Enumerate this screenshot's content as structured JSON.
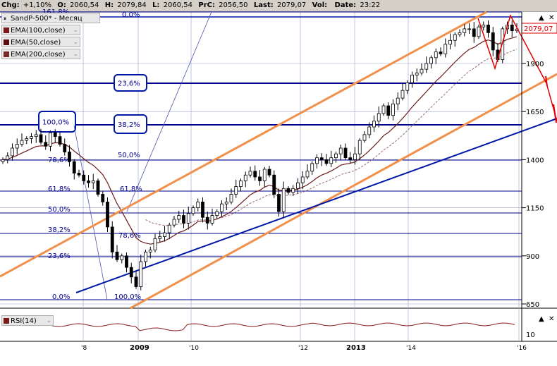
{
  "header": {
    "chg_label": "Chg:",
    "chg_value": "+1,10%",
    "o_label": "O:",
    "o_value": "2060,54",
    "h_label": "H:",
    "h_value": "2079,84",
    "l_label": "L:",
    "l_value": "2060,54",
    "prc_label": "PrC:",
    "prc_value": "2056,50",
    "last_label": "Last:",
    "last_value": "2079,07",
    "vol_label": "Vol:",
    "vol_value": "",
    "date_label": "Date:",
    "date_value": "23:22"
  },
  "legend": {
    "instrument": "SandP-500* - Месяц",
    "items": [
      {
        "label": "EMA(100,close)",
        "color": "#7b1a1a"
      },
      {
        "label": "EMA(50,close)",
        "color": "#5a1010"
      },
      {
        "label": "EMA(200,close)",
        "color": "#7b2a2a"
      }
    ],
    "rsi_label": "RSI(14)"
  },
  "price_label": "2079,07",
  "colors": {
    "up_candle": "#ffffff",
    "down_candle": "#000000",
    "channel": "#f0904a",
    "trendline": "#0018a8",
    "fib_line": "#00008b",
    "projection": "#e00000",
    "ema": "#6b1a1a",
    "grid": "#9aa0cc"
  },
  "chart_data": {
    "type": "candlestick",
    "y_ticks": [
      650,
      900,
      1150,
      1400,
      1650,
      1900
    ],
    "x_ticks": [
      "'8",
      "2009",
      "'10",
      "'12",
      "2013",
      "'14",
      "'16"
    ],
    "y_range": [
      600,
      2150
    ],
    "fib_left": [
      {
        "label": "161,8%"
      },
      {
        "label": "0,0%"
      },
      {
        "label": "50,0%"
      },
      {
        "label": "78,6%"
      },
      {
        "label": "61,8%"
      },
      {
        "label": "50,0%"
      },
      {
        "label": "38,2%"
      },
      {
        "label": "23,6%"
      },
      {
        "label": "0,0%"
      },
      {
        "label": "100,0%"
      },
      {
        "label": "61,8%"
      },
      {
        "label": "78,6%"
      }
    ],
    "fib_boxed": [
      {
        "label": "23,6%"
      },
      {
        "label": "38,2%"
      },
      {
        "label": "100,0%"
      }
    ],
    "rsi_ticks": [
      10
    ],
    "closes": [
      1400,
      1420,
      1460,
      1480,
      1500,
      1510,
      1520,
      1530,
      1490,
      1470,
      1540,
      1520,
      1480,
      1440,
      1390,
      1330,
      1320,
      1290,
      1280,
      1290,
      1220,
      1180,
      1050,
      920,
      880,
      900,
      840,
      790,
      740,
      870,
      920,
      930,
      990,
      1000,
      1020,
      1060,
      1090,
      1110,
      1070,
      1120,
      1150,
      1180,
      1100,
      1070,
      1110,
      1130,
      1170,
      1180,
      1220,
      1260,
      1290,
      1320,
      1340,
      1310,
      1290,
      1350,
      1320,
      1220,
      1130,
      1250,
      1230,
      1250,
      1280,
      1310,
      1340,
      1380,
      1410,
      1400,
      1380,
      1410,
      1430,
      1460,
      1410,
      1400,
      1430,
      1500,
      1530,
      1570,
      1600,
      1640,
      1680,
      1630,
      1690,
      1720,
      1760,
      1800,
      1840,
      1850,
      1870,
      1900,
      1930,
      1960,
      1950,
      2000,
      2020,
      2050,
      2060,
      2080,
      2080,
      2040,
      2090,
      2100,
      2060,
      1970,
      1920,
      2080,
      2100,
      2070,
      2079
    ]
  }
}
